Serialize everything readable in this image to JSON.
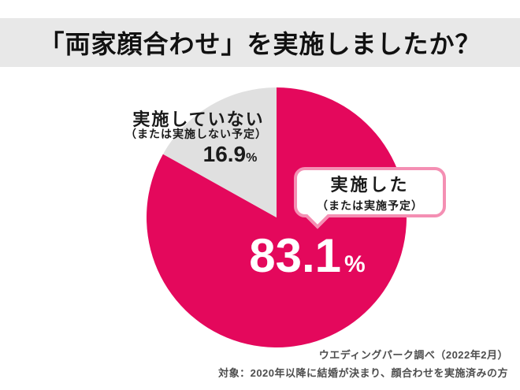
{
  "title": "「両家顔合わせ」を実施しましたか？",
  "colors": {
    "accent_pink": "#E4085C",
    "slice_gray": "#E0E0E0",
    "banner_gray": "#E8E8E8",
    "bubble_border_pink": "#F48FB3",
    "footer_text": "#4D4D4D"
  },
  "chart_data": {
    "type": "pie",
    "title": "「両家顔合わせ」を実施しましたか？",
    "unit": "%",
    "start_angle_deg": 0,
    "direction": "clockwise",
    "slices": [
      {
        "label": "実施した（または実施予定）",
        "value": 83.1,
        "color": "#E4085C"
      },
      {
        "label": "実施していない（または実施しない予定）",
        "value": 16.9,
        "color": "#E0E0E0"
      }
    ],
    "legend_position": "none",
    "data_labels": [
      "83.1%",
      "16.9%"
    ]
  },
  "labels": {
    "not_conducted": {
      "line1": "実施していない",
      "line2": "（または実施しない予定）",
      "value": "16.9",
      "unit": "%"
    },
    "conducted_bubble": {
      "line1": "実施した",
      "line2": "（または実施予定）"
    },
    "conducted_value": {
      "value": "83.1",
      "unit": "%"
    }
  },
  "footer": {
    "source": "ウエディングパーク調べ（2022年2月）",
    "target": "対象：2020年以降に結婚が決まり、顔合わせを実施済みの方"
  }
}
